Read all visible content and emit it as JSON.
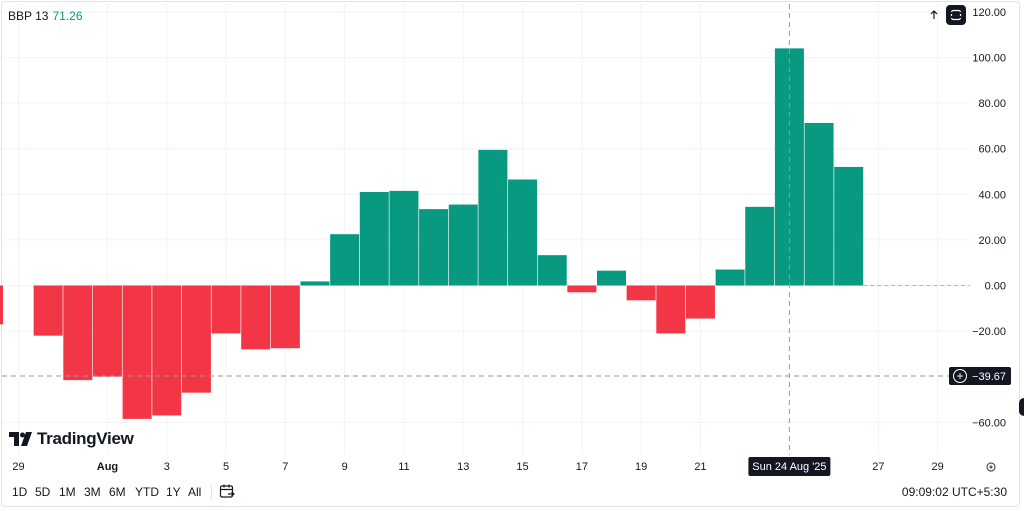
{
  "legend": {
    "symbol": "BBP 13",
    "value": "71.26"
  },
  "crosshair": {
    "price_label": "−39.67",
    "date_label": "Sun 24 Aug '25",
    "price": -39.67,
    "date_index": 26
  },
  "logo": {
    "text": "TradingView"
  },
  "range_buttons": [
    "1D",
    "5D",
    "1M",
    "3M",
    "6M",
    "YTD",
    "1Y",
    "All"
  ],
  "clock": "09:09:02 UTC+5:30",
  "icons": {
    "scroll_up": "arrow-up-icon",
    "fullscreen": "fullscreen-icon",
    "calendar": "calendar-icon",
    "settings": "gear-icon",
    "add": "plus-circle-icon"
  },
  "chart_data": {
    "type": "bar",
    "title": "",
    "xlabel": "",
    "ylabel": "",
    "ylim": [
      -70,
      120
    ],
    "y_ticks": [
      120,
      100,
      80,
      60,
      40,
      20,
      0,
      -20,
      -60
    ],
    "y_tick_labels": [
      "120.00",
      "100.00",
      "80.00",
      "60.00",
      "40.00",
      "20.00",
      "0.00",
      "−20.00",
      "−60.00"
    ],
    "x_tick_labels": [
      {
        "label": "29",
        "index": 0
      },
      {
        "label": "Aug",
        "index": 3
      },
      {
        "label": "3",
        "index": 5
      },
      {
        "label": "5",
        "index": 7
      },
      {
        "label": "7",
        "index": 9
      },
      {
        "label": "9",
        "index": 11
      },
      {
        "label": "11",
        "index": 13
      },
      {
        "label": "13",
        "index": 15
      },
      {
        "label": "15",
        "index": 17
      },
      {
        "label": "17",
        "index": 19
      },
      {
        "label": "19",
        "index": 21
      },
      {
        "label": "21",
        "index": 23
      },
      {
        "label": "27",
        "index": 29
      },
      {
        "label": "29",
        "index": 31
      }
    ],
    "values": [
      -22,
      -41.5,
      -40,
      -58.5,
      -57,
      -47,
      -21,
      -28,
      -27.5,
      1.8,
      22.5,
      41,
      41.5,
      33.5,
      35.5,
      59.5,
      46.5,
      13.3,
      -3,
      6.5,
      -6.5,
      -21,
      -14.5,
      7,
      34.5,
      104,
      71.3,
      52
    ],
    "first_index": 1,
    "colors": {
      "positive": "#089981",
      "negative": "#f23645"
    },
    "grid": true,
    "legend_position": "top-left"
  }
}
